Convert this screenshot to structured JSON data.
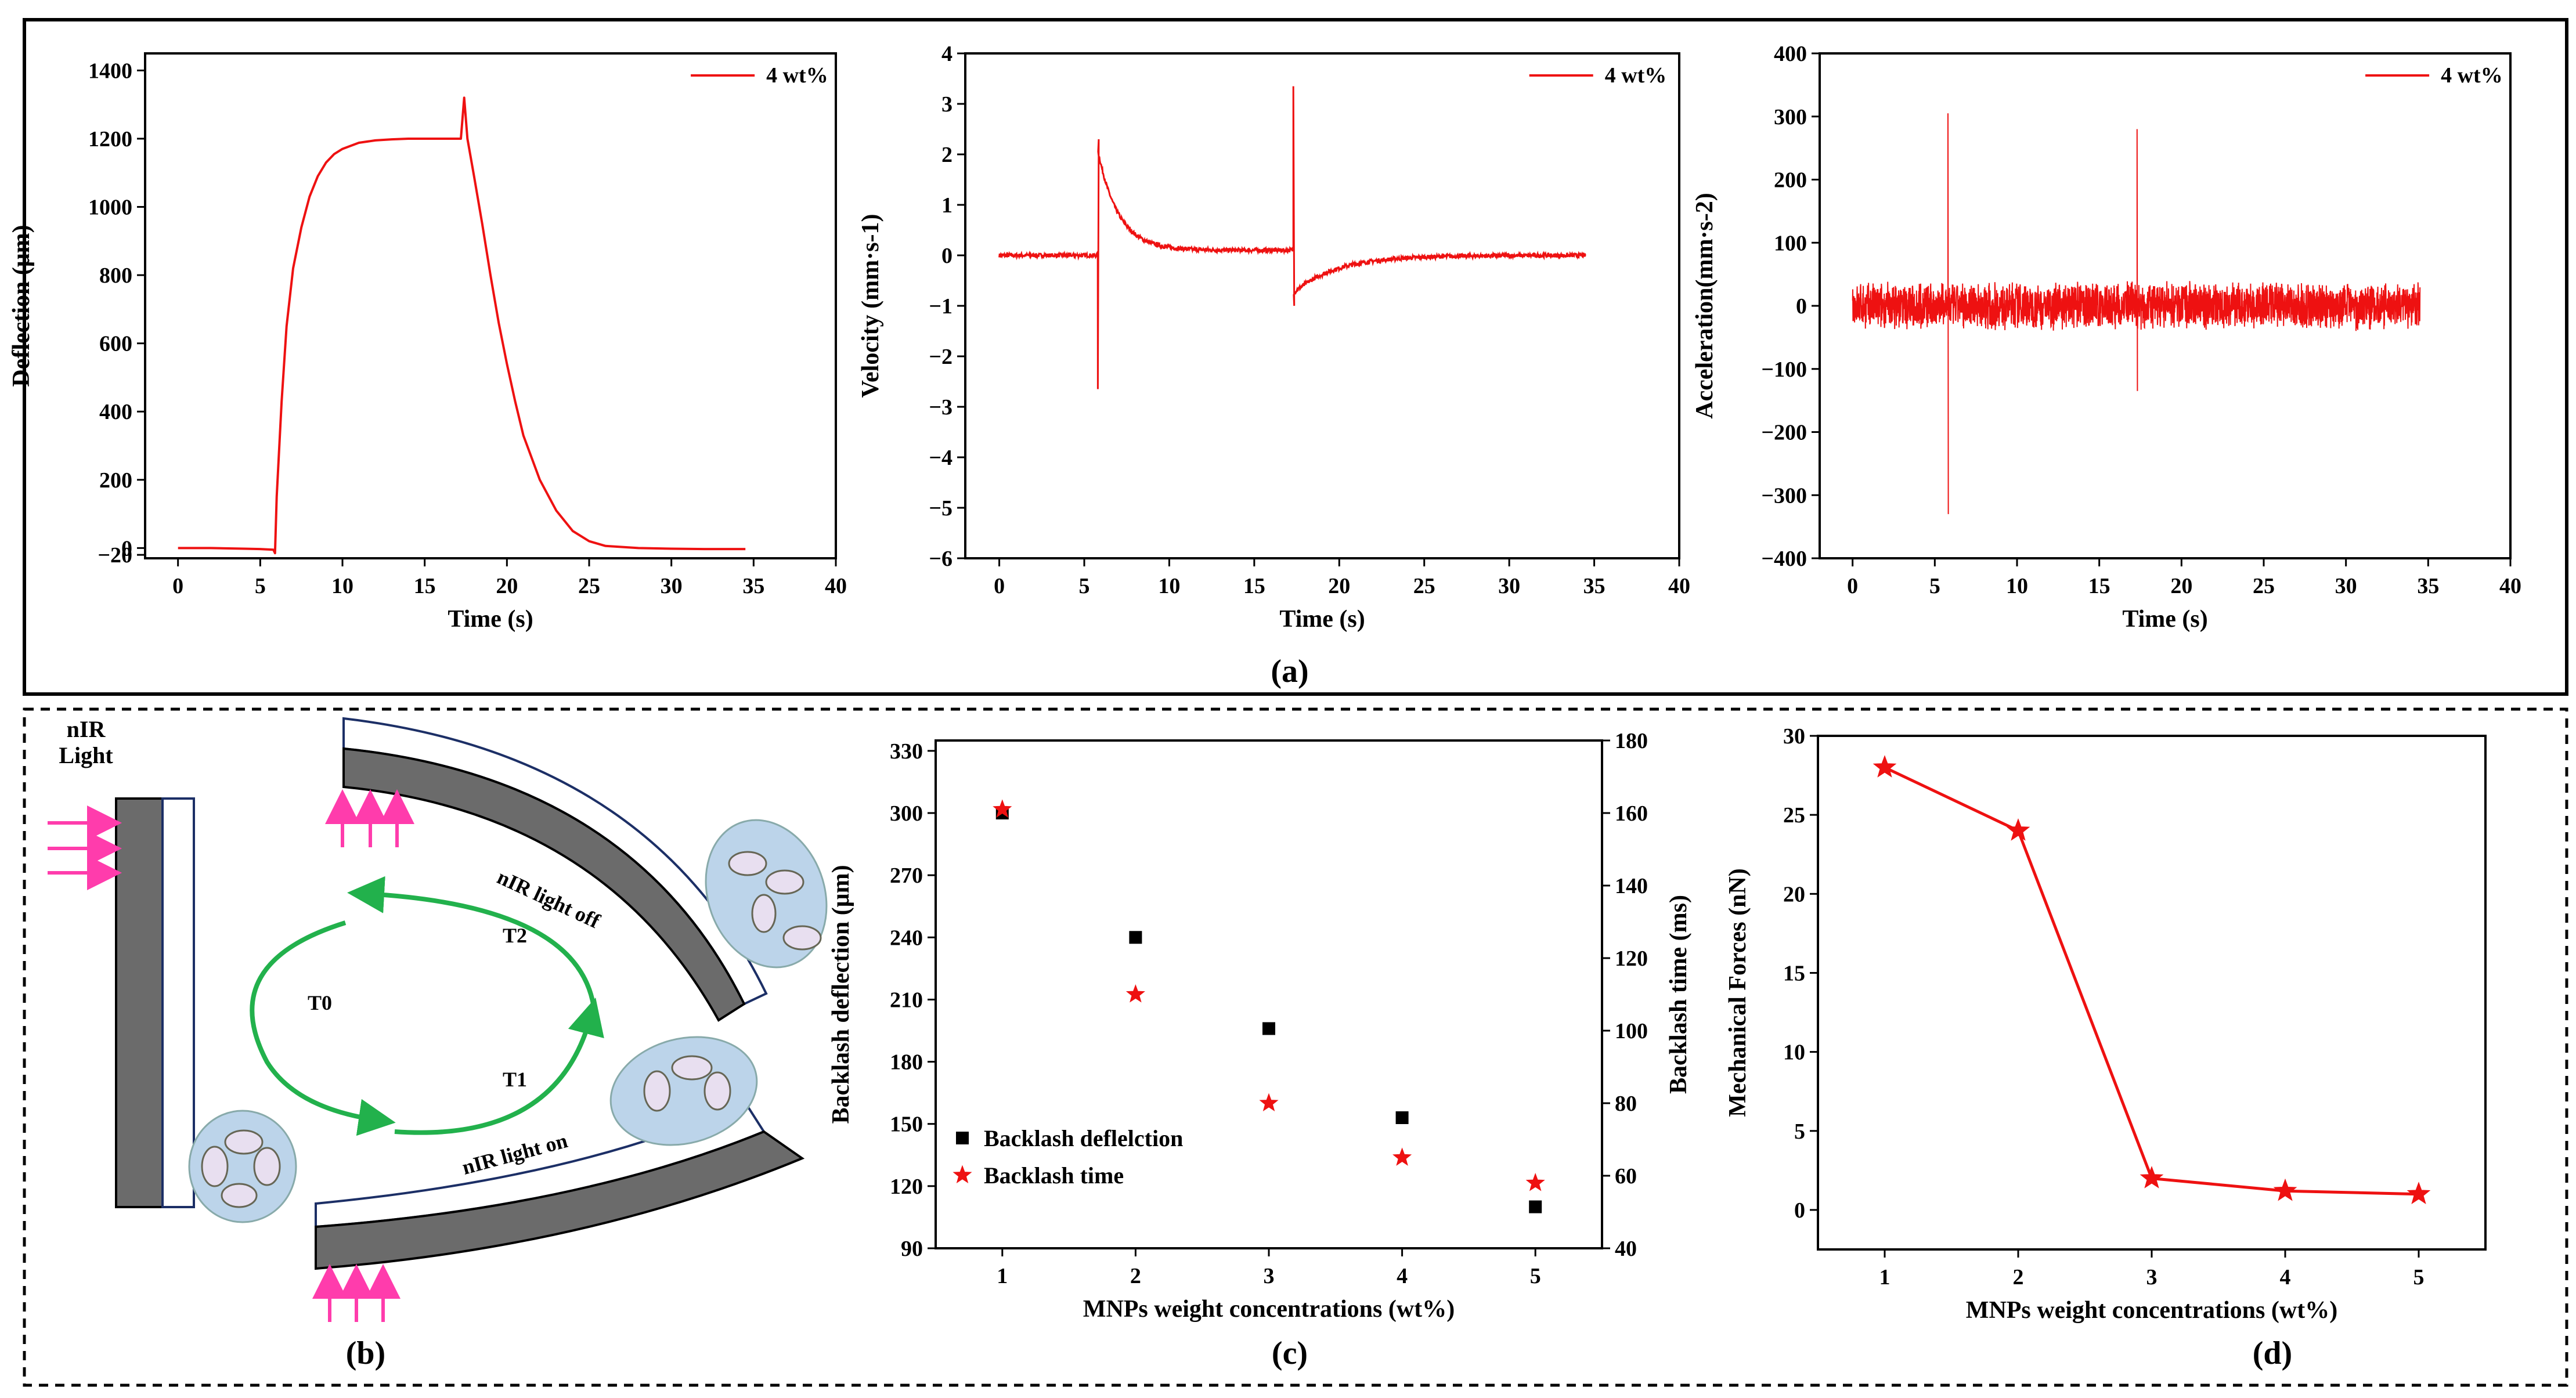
{
  "figure": {
    "top_caption": "(a)",
    "bottom_captions": [
      "(b)",
      "(c)",
      "(d)"
    ]
  },
  "colors": {
    "series": "#ee1111",
    "axis": "#000000",
    "cyl_dark": "#6b6b6b",
    "cell_fill": "#bcd4ea",
    "arrow": "#ff3cac",
    "cycle": "#22b14c"
  },
  "chart_data": [
    {
      "type": "line",
      "title": "",
      "xlabel": "Time (s)",
      "ylabel": "Deflection (μm)",
      "xlim": [
        -2,
        40
      ],
      "ylim": [
        -30,
        1450
      ],
      "xticks": [
        0,
        5,
        10,
        15,
        20,
        25,
        30,
        35,
        40
      ],
      "yticks": [
        -20,
        0,
        200,
        400,
        600,
        800,
        1000,
        1200,
        1400
      ],
      "ytick_labels": [
        "−20",
        "0",
        "200",
        "400",
        "600",
        "800",
        "1000",
        "1200",
        "1400"
      ],
      "legend": "4 wt%",
      "series": [
        {
          "name": "4 wt%",
          "x": [
            0,
            2,
            4,
            5,
            5.8,
            5.9,
            6.0,
            6.3,
            6.6,
            7,
            7.5,
            8,
            8.5,
            9,
            9.5,
            10,
            11,
            12,
            13,
            14,
            15,
            16,
            17.2,
            17.4,
            17.6,
            18,
            18.5,
            19,
            19.5,
            20,
            20.5,
            21,
            22,
            23,
            24,
            25,
            26,
            28,
            30,
            32,
            34.5
          ],
          "y": [
            0,
            0,
            -2,
            -3,
            -5,
            -15,
            150,
            430,
            650,
            820,
            940,
            1030,
            1090,
            1130,
            1155,
            1170,
            1188,
            1195,
            1198,
            1200,
            1200,
            1200,
            1200,
            1320,
            1200,
            1090,
            950,
            800,
            660,
            540,
            430,
            330,
            200,
            110,
            50,
            20,
            6,
            0,
            -2,
            -3,
            -3
          ]
        }
      ]
    },
    {
      "type": "line",
      "title": "",
      "xlabel": "Time (s)",
      "ylabel": "Velocity (mm·s-1)",
      "xlim": [
        -2,
        40
      ],
      "ylim": [
        -6,
        4
      ],
      "xticks": [
        0,
        5,
        10,
        15,
        20,
        25,
        30,
        35,
        40
      ],
      "yticks": [
        -6,
        -5,
        -4,
        -3,
        -2,
        -1,
        0,
        1,
        2,
        3,
        4
      ],
      "ytick_labels": [
        "−6",
        "−5",
        "−4",
        "−3",
        "−2",
        "−1",
        "0",
        "1",
        "2",
        "3",
        "4"
      ],
      "legend": "4 wt%",
      "series": [
        {
          "name": "4 wt%",
          "events": [
            {
              "t": 5.8,
              "min": -2.65,
              "max": 2.3,
              "decay_to": 0.1,
              "decay_tau": 1.2
            },
            {
              "t": 17.3,
              "min": -1.0,
              "max": 3.35,
              "decay_from": -0.75,
              "decay_tau": 2.5
            }
          ],
          "noise": 0.08,
          "t_end": 34.5
        }
      ]
    },
    {
      "type": "line",
      "title": "",
      "xlabel": "Time (s)",
      "ylabel": "Acceleration(mm·s-2)",
      "xlim": [
        -2,
        40
      ],
      "ylim": [
        -400,
        400
      ],
      "xticks": [
        0,
        5,
        10,
        15,
        20,
        25,
        30,
        35,
        40
      ],
      "yticks": [
        -400,
        -300,
        -200,
        -100,
        0,
        100,
        200,
        300,
        400
      ],
      "ytick_labels": [
        "−400",
        "−300",
        "−200",
        "−100",
        "0",
        "100",
        "200",
        "300",
        "400"
      ],
      "legend": "4 wt%",
      "series": [
        {
          "name": "4 wt%",
          "spikes": [
            {
              "t": 5.8,
              "min": -330,
              "max": 305
            },
            {
              "t": 17.3,
              "min": -135,
              "max": 280
            }
          ],
          "noise": 40,
          "t_end": 34.5
        }
      ]
    },
    {
      "type": "scatter",
      "title": "",
      "xlabel": "MNPs weight concentrations (wt%)",
      "ylabel": "Backlash deflection (μm)",
      "ylabel_right": "Backlash time (ms)",
      "xlim": [
        0.5,
        5.5
      ],
      "ylim": [
        90,
        335
      ],
      "ylim_right": [
        40,
        180
      ],
      "xticks": [
        1,
        2,
        3,
        4,
        5
      ],
      "yticks": [
        90,
        120,
        150,
        180,
        210,
        240,
        270,
        300,
        330
      ],
      "yticks_right": [
        40,
        60,
        80,
        100,
        120,
        140,
        160,
        180
      ],
      "legend_entries": [
        "Backlash deflelction",
        "Backlash time"
      ],
      "series": [
        {
          "name": "Backlash deflelction",
          "axis": "left",
          "x": [
            1,
            2,
            3,
            4,
            5
          ],
          "y": [
            300,
            240,
            196,
            153,
            110
          ]
        },
        {
          "name": "Backlash time",
          "axis": "right",
          "x": [
            1,
            2,
            3,
            4,
            5
          ],
          "y": [
            161,
            110,
            80,
            65,
            58
          ]
        }
      ]
    },
    {
      "type": "line",
      "title": "",
      "xlabel": "MNPs weight concentrations (wt%)",
      "ylabel": "Mechanical Forces (nN)",
      "xlim": [
        0.5,
        5.5
      ],
      "ylim": [
        -2.5,
        30
      ],
      "xticks": [
        1,
        2,
        3,
        4,
        5
      ],
      "yticks": [
        0,
        5,
        10,
        15,
        20,
        25,
        30
      ],
      "series": [
        {
          "name": "Mechanical Forces",
          "x": [
            1,
            2,
            3,
            4,
            5
          ],
          "y": [
            28,
            24,
            2,
            1.2,
            1
          ]
        }
      ]
    }
  ],
  "diagram": {
    "light_label_1": "nIR",
    "light_label_2": "Light",
    "light_off": "nIR light off",
    "light_on": "nIR light on",
    "t0": "T0",
    "t1": "T1",
    "t2": "T2"
  }
}
